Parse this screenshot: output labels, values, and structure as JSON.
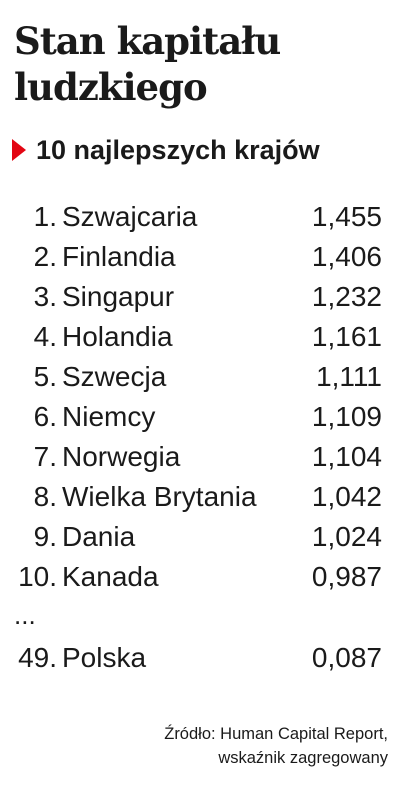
{
  "title": "Stan kapitału ludzkiego",
  "subtitle": "10 najlepszych krajów",
  "table": {
    "rows": [
      [
        "1.",
        "Szwajcaria",
        "1,455"
      ],
      [
        "2.",
        "Finlandia",
        "1,406"
      ],
      [
        "3.",
        "Singapur",
        "1,232"
      ],
      [
        "4.",
        "Holandia",
        "1,161"
      ],
      [
        "5.",
        "Szwecja",
        "1,111"
      ],
      [
        "6.",
        "Niemcy",
        "1,109"
      ],
      [
        "7.",
        "Norwegia",
        "1,104"
      ],
      [
        "8.",
        "Wielka Brytania",
        "1,042"
      ],
      [
        "9.",
        "Dania",
        "1,024"
      ],
      [
        "10.",
        "Kanada",
        "0,987"
      ]
    ],
    "ellipsis": "...",
    "extra_row": [
      "49.",
      "Polska",
      "0,087"
    ]
  },
  "source": [
    "Źródło: Human Capital Report,",
    "wskaźnik zagregowany"
  ]
}
